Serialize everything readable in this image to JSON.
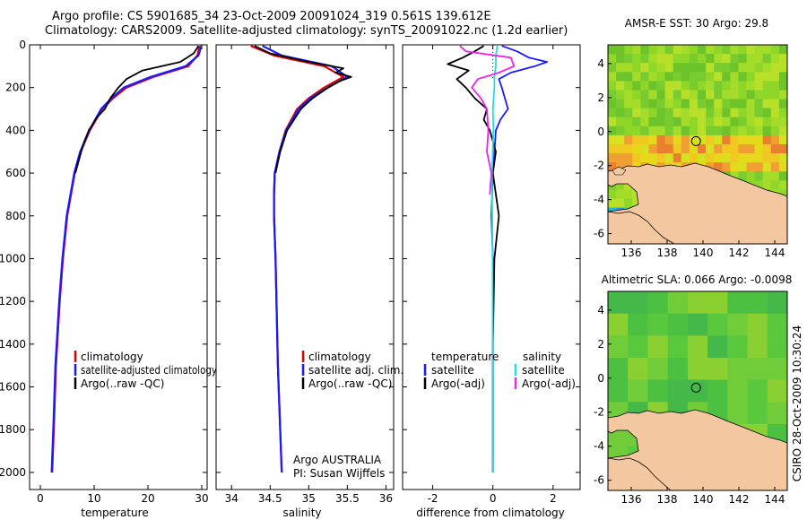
{
  "titles": {
    "line1": "Argo profile: CS 5901685_34 23-Oct-2009 20091024_319 0.561S 139.612E",
    "line2": "Climatology: CARS2009. Satellite-adjusted climatology: synTS_20091022.nc (1.2d earlier)"
  },
  "side_text": "CSIRO 28-Oct-2009 10:30:24",
  "colors": {
    "climatology": "#e00000",
    "satellite": "#1a1aff",
    "argo": "#000000",
    "salinity_satellite": "#22dddd",
    "salinity_argo": "#ee22ee",
    "land": "#f3c8a0"
  },
  "chart_data": [
    {
      "type": "line",
      "name": "temperature-profile",
      "xlabel": "temperature",
      "ylabel": "",
      "xlim": [
        -2,
        31
      ],
      "ylim": [
        2080,
        0
      ],
      "x_ticks": [
        "0",
        "10",
        "20",
        "30"
      ],
      "y_ticks": [
        "0",
        "200",
        "400",
        "600",
        "800",
        "1000",
        "1200",
        "1400",
        "1600",
        "1800",
        "2000"
      ],
      "legend": [
        "climatology",
        "satellite-adjusted climatology",
        "Argo(..raw -QC)"
      ],
      "series": [
        {
          "name": "climatology",
          "depth": [
            5,
            50,
            100,
            150,
            200,
            250,
            300,
            400,
            500,
            600,
            800,
            1000,
            1200,
            1500,
            1800,
            2000
          ],
          "values": [
            29.6,
            29.2,
            27.5,
            21,
            16,
            13.5,
            11.5,
            9.2,
            7.5,
            6.4,
            5.0,
            4.2,
            3.6,
            2.9,
            2.5,
            2.2
          ]
        },
        {
          "name": "satellite-adjusted climatology",
          "depth": [
            5,
            50,
            100,
            150,
            200,
            250,
            300,
            400,
            500,
            600,
            800,
            1000,
            1200,
            1500,
            1800,
            2000
          ],
          "values": [
            29.9,
            29.4,
            27.0,
            20.5,
            15.5,
            13.2,
            11.3,
            9.1,
            7.4,
            6.3,
            4.9,
            4.1,
            3.5,
            2.8,
            2.4,
            2.1
          ]
        },
        {
          "name": "Argo(..raw -QC)",
          "depth": [
            5,
            40,
            80,
            120,
            160,
            200,
            250,
            300,
            340,
            400,
            450,
            500,
            600
          ],
          "values": [
            29.4,
            28.5,
            26.0,
            19.0,
            16.0,
            14.5,
            13.0,
            12.0,
            10.5,
            9.0,
            8.2,
            7.6,
            6.5
          ]
        }
      ]
    },
    {
      "type": "line",
      "name": "salinity-profile",
      "xlabel": "salinity",
      "ylabel": "",
      "xlim": [
        33.8,
        36.1
      ],
      "ylim": [
        2080,
        0
      ],
      "x_ticks": [
        "34",
        "34.5",
        "35",
        "35.5",
        "36"
      ],
      "legend": [
        "climatology",
        "satellite adj. clim.",
        "Argo(..raw -QC)"
      ],
      "annotations": [
        "Argo AUSTRALIA",
        "PI: Susan Wijffels"
      ],
      "series": [
        {
          "name": "climatology",
          "depth": [
            5,
            50,
            100,
            150,
            200,
            250,
            300,
            400,
            500,
            600,
            700,
            800,
            1000,
            1500,
            2000
          ],
          "values": [
            34.25,
            34.55,
            35.2,
            35.45,
            35.2,
            35.0,
            34.85,
            34.7,
            34.62,
            34.56,
            34.55,
            34.55,
            34.57,
            34.6,
            34.65
          ]
        },
        {
          "name": "satellite adj. clim.",
          "depth": [
            5,
            50,
            100,
            150,
            200,
            250,
            300,
            400,
            500,
            600,
            700,
            800,
            1000,
            1500,
            2000
          ],
          "values": [
            34.4,
            34.65,
            35.3,
            35.5,
            35.25,
            35.02,
            34.87,
            34.71,
            34.62,
            34.56,
            34.55,
            34.55,
            34.57,
            34.6,
            34.65
          ]
        },
        {
          "name": "Argo(..raw -QC)",
          "depth": [
            5,
            40,
            80,
            110,
            130,
            150,
            170,
            200,
            250,
            300,
            400,
            500,
            600
          ],
          "values": [
            34.3,
            34.5,
            35.0,
            35.45,
            35.35,
            35.55,
            35.4,
            35.25,
            35.05,
            34.9,
            34.72,
            34.63,
            34.57
          ]
        }
      ]
    },
    {
      "type": "line",
      "name": "difference-profile",
      "xlabel": "difference from climatology",
      "ylabel": "",
      "xlim": [
        -3,
        2.9
      ],
      "ylim": [
        2080,
        0
      ],
      "x_ticks": [
        "-2",
        "0",
        "2"
      ],
      "legend_left_title": "temperature",
      "legend_right_title": "salinity",
      "legend": [
        "satellite",
        "Argo(-adj)",
        "satellite",
        "Argo(-adj)"
      ],
      "series": [
        {
          "name": "temperature satellite",
          "depth": [
            5,
            30,
            60,
            80,
            100,
            130,
            160,
            200,
            250,
            300,
            350,
            400,
            500,
            600,
            800,
            1000,
            1500,
            2000
          ],
          "values": [
            0.3,
            0.8,
            1.2,
            1.8,
            1.4,
            0.6,
            0.2,
            0.3,
            0.4,
            0.5,
            0.25,
            0.1,
            0.05,
            0.0,
            -0.05,
            0.0,
            0.0,
            0.0
          ]
        },
        {
          "name": "temperature Argo(-adj)",
          "depth": [
            5,
            30,
            60,
            90,
            120,
            160,
            200,
            250,
            300,
            350,
            400,
            500,
            600,
            800,
            1000,
            1400,
            2000
          ],
          "values": [
            -0.3,
            -0.6,
            -1.0,
            -1.5,
            -0.8,
            -1.2,
            -0.9,
            -0.6,
            -0.2,
            -0.3,
            -0.1,
            0.1,
            0.0,
            0.2,
            0.05,
            0.0,
            0.0
          ]
        },
        {
          "name": "salinity satellite",
          "depth": [
            5,
            50,
            100,
            150,
            200,
            300,
            400,
            600,
            800,
            1000,
            1500,
            2000
          ],
          "values": [
            0.15,
            0.1,
            0.1,
            0.05,
            0.05,
            0.0,
            0.02,
            -0.03,
            -0.02,
            -0.01,
            0.0,
            0.0
          ]
        },
        {
          "name": "salinity Argo(-adj)",
          "depth": [
            5,
            30,
            60,
            100,
            130,
            160,
            200,
            250,
            300,
            400,
            500,
            600,
            700
          ],
          "values": [
            -1.1,
            -0.9,
            0.6,
            0.7,
            0.2,
            -0.5,
            -0.7,
            -0.4,
            -0.2,
            -0.15,
            -0.2,
            -0.05,
            -0.1
          ]
        }
      ]
    },
    {
      "type": "heatmap",
      "name": "amsr-sst-map",
      "title": "AMSR-E SST: 30 Argo: 29.8",
      "xlim": [
        134.7,
        144.7
      ],
      "ylim": [
        -6.6,
        5.1
      ],
      "x_ticks": [
        "136",
        "138",
        "140",
        "142",
        "144"
      ],
      "y_ticks": [
        "4",
        "2",
        "0",
        "-2",
        "-4",
        "-6"
      ],
      "argo_marker": {
        "lon": 139.612,
        "lat": -0.561
      }
    },
    {
      "type": "heatmap",
      "name": "altimetric-sla-map",
      "title": "Altimetric SLA: 0.066 Argo: -0.0098",
      "xlim": [
        134.7,
        144.7
      ],
      "ylim": [
        -6.6,
        5.1
      ],
      "x_ticks": [
        "136",
        "138",
        "140",
        "142",
        "144"
      ],
      "y_ticks": [
        "4",
        "2",
        "0",
        "-2",
        "-4",
        "-6"
      ],
      "argo_marker": {
        "lon": 139.612,
        "lat": -0.561
      }
    }
  ]
}
